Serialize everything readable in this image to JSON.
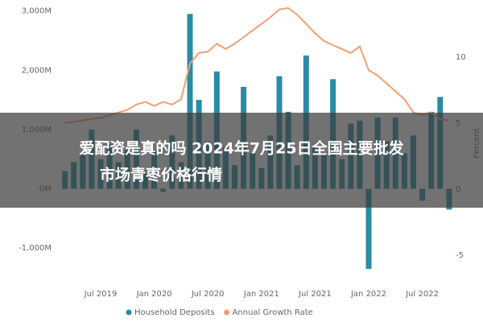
{
  "chart_data": {
    "type": "bar_line",
    "categories": [
      null,
      null,
      null,
      null,
      "Jul 2019",
      null,
      null,
      null,
      null,
      null,
      "Jan 2020",
      null,
      null,
      null,
      null,
      null,
      "Jul 2020",
      null,
      null,
      null,
      null,
      null,
      "Jan 2021",
      null,
      null,
      null,
      null,
      null,
      "Jul 2021",
      null,
      null,
      null,
      null,
      null,
      "Jan 2022",
      null,
      null,
      null,
      null,
      null,
      "Jul 2022",
      null,
      null,
      null
    ],
    "series": [
      {
        "name": "Household Deposits",
        "color": "#2a8ba6",
        "kind": "bar",
        "values": [
          300,
          450,
          600,
          1000,
          500,
          750,
          450,
          650,
          1000,
          250,
          650,
          -50,
          900,
          450,
          2950,
          1500,
          800,
          1980,
          700,
          400,
          1720,
          600,
          350,
          900,
          1900,
          1300,
          400,
          2250,
          700,
          600,
          1850,
          500,
          1100,
          1150,
          -1350,
          1200,
          800,
          1200,
          600,
          900,
          -200,
          1300,
          1550,
          -350
        ]
      },
      {
        "name": "Annual Growth Rate",
        "color": "#f0a070",
        "kind": "line",
        "axis": "y2",
        "values": [
          5.0,
          5.1,
          5.2,
          5.3,
          5.4,
          5.6,
          5.8,
          6.0,
          6.4,
          6.6,
          6.3,
          6.6,
          6.4,
          6.8,
          9.5,
          10.3,
          10.4,
          11.0,
          10.6,
          11.0,
          11.5,
          12.0,
          12.5,
          13.0,
          13.6,
          13.7,
          13.2,
          12.5,
          11.8,
          11.2,
          10.9,
          10.6,
          10.3,
          10.8,
          9.0,
          8.6,
          8.0,
          7.4,
          6.8,
          5.8,
          5.6,
          5.8,
          5.3,
          5.2
        ]
      }
    ],
    "ylim": [
      -1500,
      3050
    ],
    "yticks": [
      {
        "value": -1000,
        "label": "-1,000M"
      },
      {
        "value": 0,
        "label": "0M"
      },
      {
        "value": 1000,
        "label": "1,000M"
      },
      {
        "value": 2000,
        "label": "2,000M"
      },
      {
        "value": 3000,
        "label": "3,000M"
      }
    ],
    "y2lim": [
      -6.7,
      13.7
    ],
    "y2ticks": [
      -5,
      0,
      5,
      10
    ],
    "y2label": "Percent",
    "legend": "bottom",
    "overlay_title": [
      "爱配资是真的吗 2024年7月25日全国主要批发",
      "市场青枣价格行情"
    ]
  }
}
